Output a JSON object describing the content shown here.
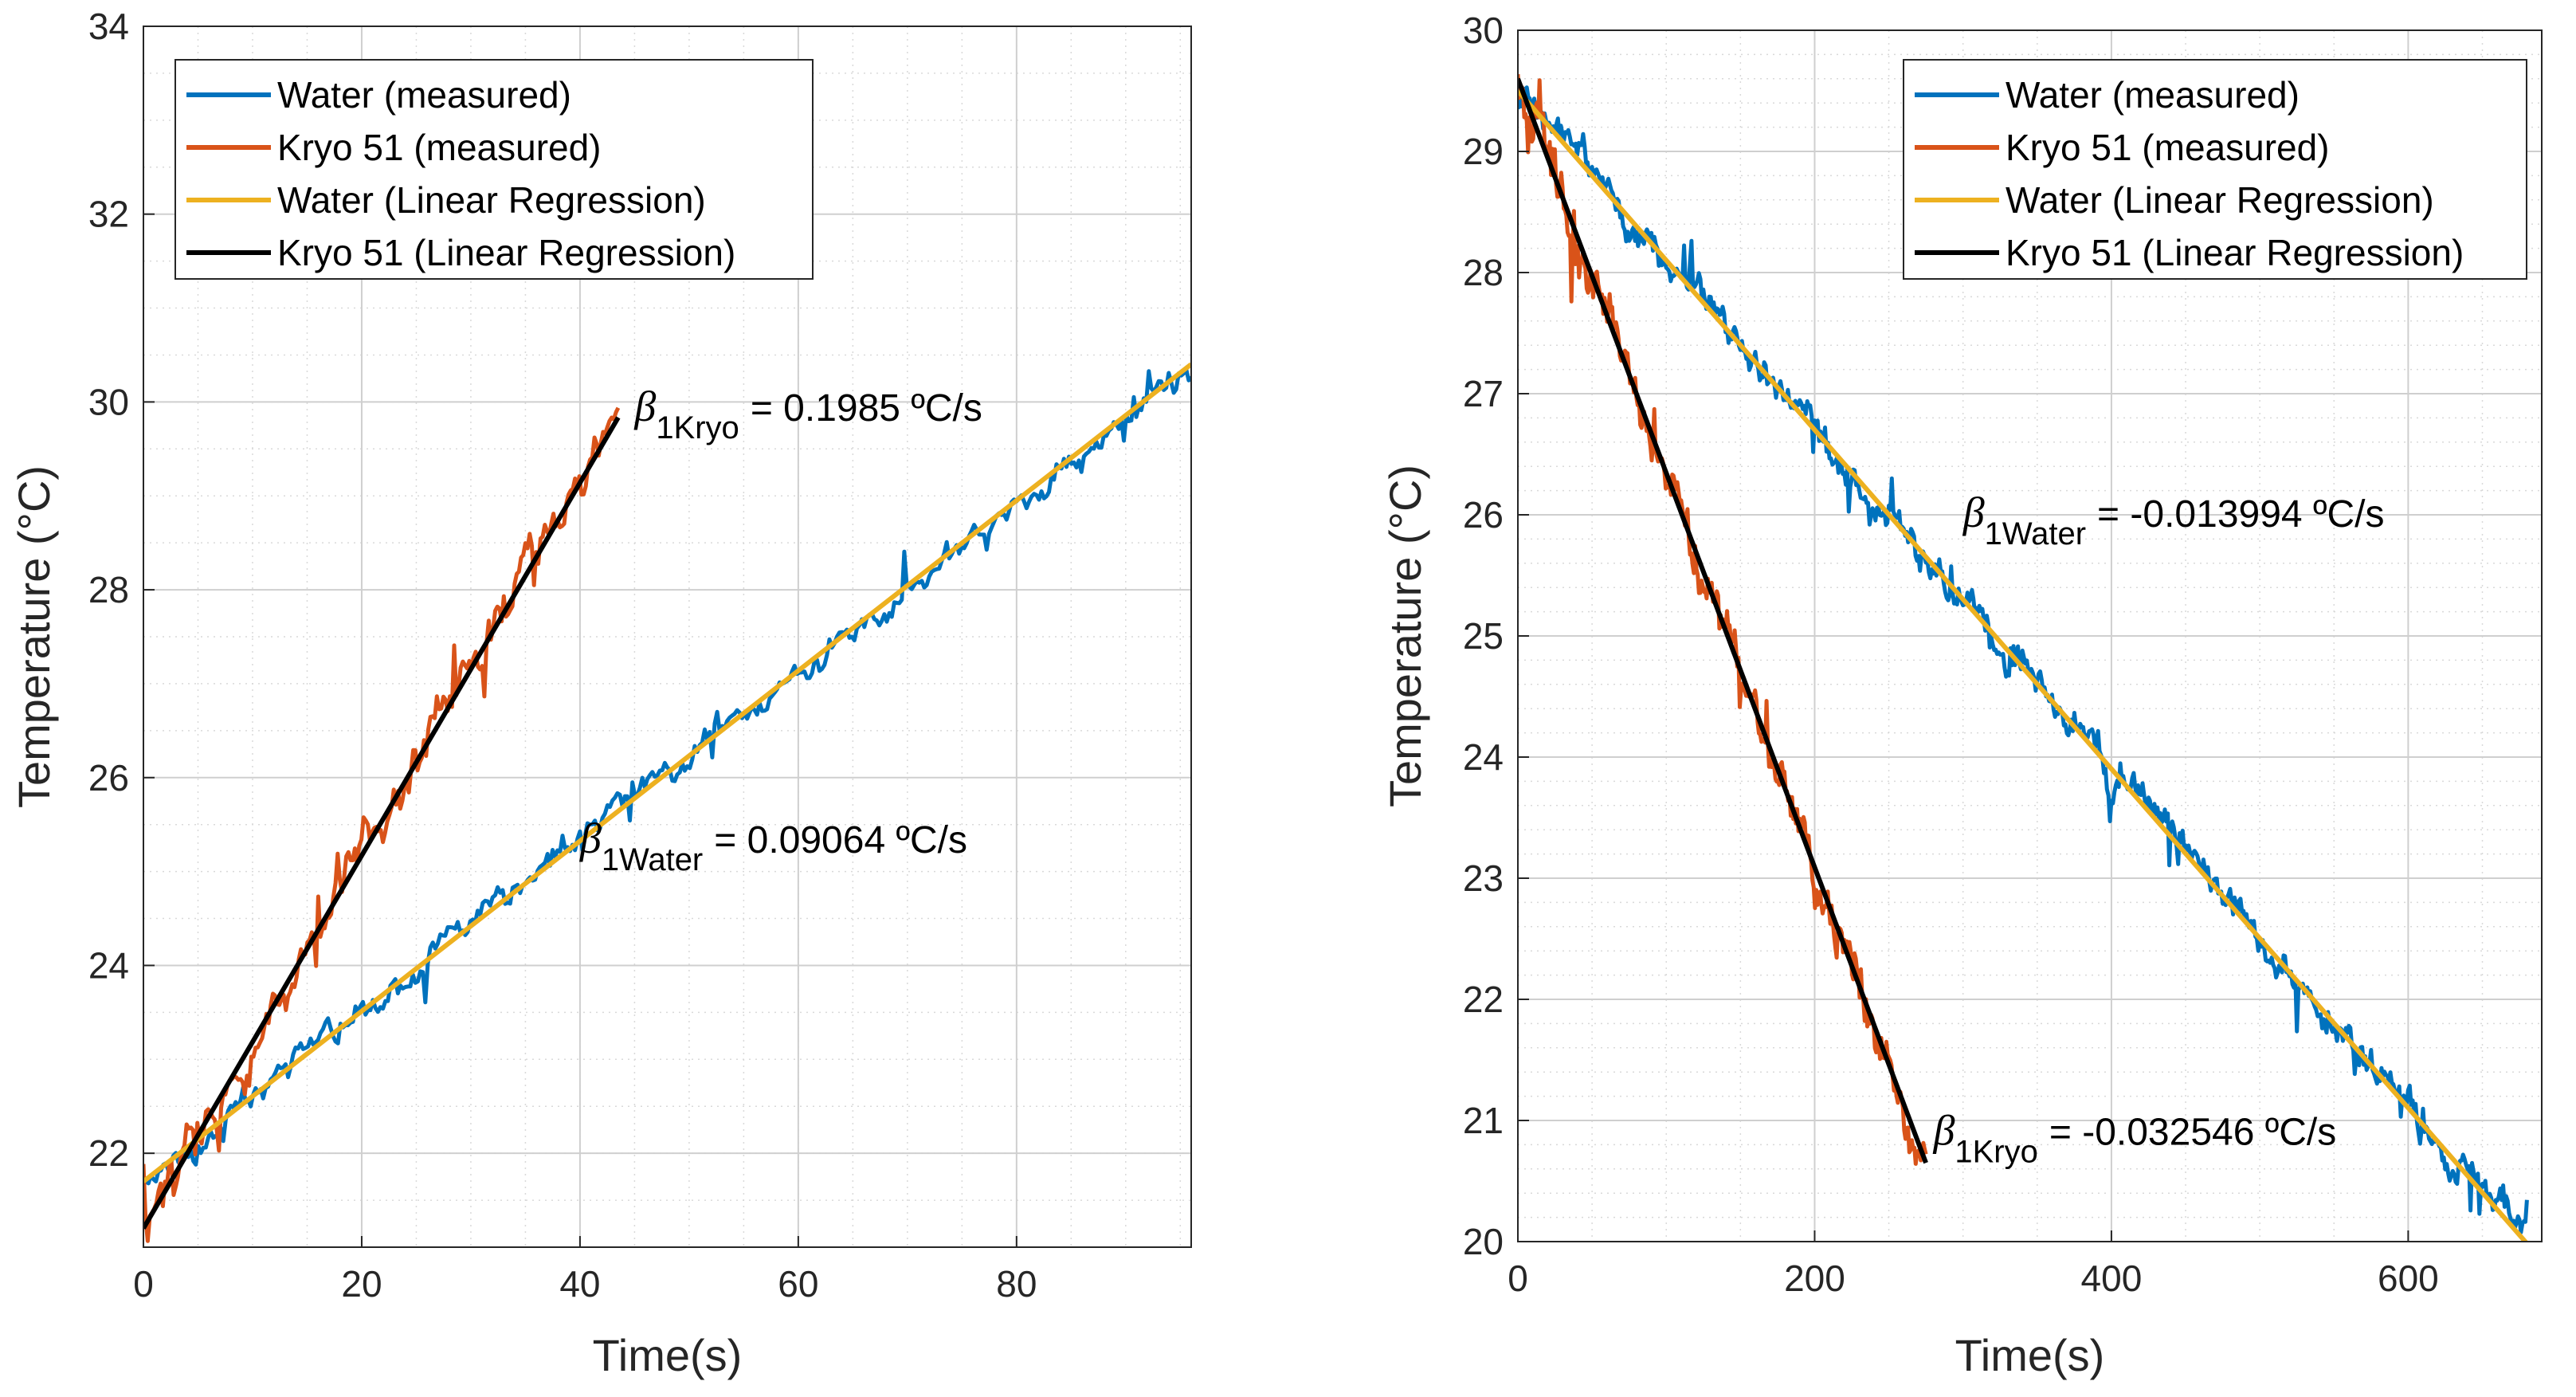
{
  "chart_data": [
    {
      "type": "line",
      "xlabel": "Time(s)",
      "ylabel": "Temperature (°C)",
      "xlim": [
        0,
        96
      ],
      "ylim": [
        21,
        34
      ],
      "xticks": [
        0,
        20,
        40,
        60,
        80
      ],
      "yticks": [
        22,
        24,
        26,
        28,
        30,
        32,
        34
      ],
      "grid": true,
      "minor_grid": true,
      "legend": {
        "position": "top-left",
        "entries": [
          "Water (measured)",
          "Kryo 51 (measured)",
          "Water (Linear Regression)",
          "Kryo 51 (Linear Regression)"
        ]
      },
      "colors": {
        "water": "#0072BD",
        "kryo": "#D95319",
        "water_fit": "#EDB120",
        "kryo_fit": "#000000"
      },
      "series": [
        {
          "name": "Water (measured)",
          "x_range": [
            0,
            96
          ],
          "start": 21.7,
          "slope": 0.09064
        },
        {
          "name": "Kryo 51 (measured)",
          "x_range": [
            0,
            43.5
          ],
          "start": 21.2,
          "slope": 0.1985
        },
        {
          "name": "Water (Linear Regression)",
          "intercept": 21.7,
          "slope": 0.09064,
          "x_range": [
            0,
            96
          ]
        },
        {
          "name": "Kryo 51 (Linear Regression)",
          "intercept": 21.2,
          "slope": 0.1985,
          "x_range": [
            0,
            43.5
          ]
        }
      ],
      "annotations": [
        {
          "symbol": "β",
          "sub": "1Kryo",
          "text": "= 0.1985 ºC/s",
          "x": 45,
          "y": 29.8
        },
        {
          "symbol": "β",
          "sub": "1Water",
          "text": "= 0.09064 ºC/s",
          "x": 40,
          "y": 25.2
        }
      ]
    },
    {
      "type": "line",
      "xlabel": "Time(s)",
      "ylabel": "Temperature (°C)",
      "xlim": [
        0,
        690
      ],
      "ylim": [
        20,
        30
      ],
      "xticks": [
        0,
        200,
        400,
        600
      ],
      "yticks": [
        20,
        21,
        22,
        23,
        24,
        25,
        26,
        27,
        28,
        29,
        30
      ],
      "grid": true,
      "minor_grid": true,
      "legend": {
        "position": "top-right",
        "entries": [
          "Water (measured)",
          "Kryo 51 (measured)",
          "Water (Linear Regression)",
          "Kryo 51 (Linear Regression)"
        ]
      },
      "colors": {
        "water": "#0072BD",
        "kryo": "#D95319",
        "water_fit": "#EDB120",
        "kryo_fit": "#000000"
      },
      "series": [
        {
          "name": "Water (measured)",
          "x_range": [
            0,
            680
          ],
          "start": 29.5,
          "slope": -0.013994
        },
        {
          "name": "Kryo 51 (measured)",
          "x_range": [
            0,
            275
          ],
          "start": 29.6,
          "slope": -0.032546
        },
        {
          "name": "Water (Linear Regression)",
          "intercept": 29.5,
          "slope": -0.013994,
          "x_range": [
            0,
            680
          ]
        },
        {
          "name": "Kryo 51 (Linear Regression)",
          "intercept": 29.6,
          "slope": -0.032546,
          "x_range": [
            0,
            275
          ]
        }
      ],
      "annotations": [
        {
          "symbol": "β",
          "sub": "1Water",
          "text": "= -0.013994 ºC/s",
          "x": 300,
          "y": 25.9
        },
        {
          "symbol": "β",
          "sub": "1Kryo",
          "text": "= -0.032546 ºC/s",
          "x": 280,
          "y": 20.8
        }
      ]
    }
  ]
}
